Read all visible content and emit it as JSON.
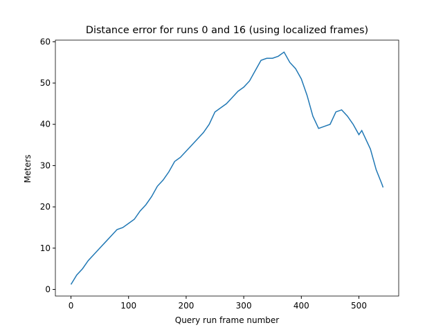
{
  "chart_data": {
    "type": "line",
    "title": "Distance error for runs 0 and 16 (using localized frames)",
    "x_label": "Query run frame number",
    "y_label": "Meters",
    "x": [
      0,
      10,
      20,
      30,
      40,
      50,
      60,
      70,
      80,
      90,
      100,
      110,
      120,
      130,
      140,
      150,
      160,
      170,
      180,
      190,
      200,
      210,
      220,
      230,
      240,
      250,
      260,
      270,
      280,
      290,
      300,
      310,
      320,
      330,
      340,
      350,
      360,
      370,
      380,
      390,
      400,
      410,
      420,
      430,
      440,
      450,
      460,
      470,
      480,
      490,
      500,
      505,
      510,
      520,
      530,
      540,
      542
    ],
    "series": [
      {
        "name": "distance error",
        "color": "#1f77b4",
        "values": [
          1.2,
          3.5,
          5,
          7,
          8.5,
          10,
          11.5,
          13,
          14.5,
          15,
          16,
          17,
          19,
          20.5,
          22.5,
          25,
          26.5,
          28.5,
          31,
          32,
          33.5,
          35,
          36.5,
          38,
          40,
          43,
          44,
          45,
          46.5,
          48,
          49,
          50.5,
          53,
          55.5,
          56,
          56,
          56.5,
          57.5,
          55,
          53.5,
          51,
          47,
          42,
          39,
          39.5,
          40,
          43,
          43.5,
          42,
          40,
          37.5,
          38.5,
          37,
          34,
          29,
          25.5,
          24.7
        ]
      }
    ],
    "xlim": [
      -27.1,
      569.1
    ],
    "ylim": [
      -1.6,
      60.4
    ],
    "xticks": [
      0,
      100,
      200,
      300,
      400,
      500
    ],
    "yticks": [
      0,
      10,
      20,
      30,
      40,
      50,
      60
    ]
  }
}
